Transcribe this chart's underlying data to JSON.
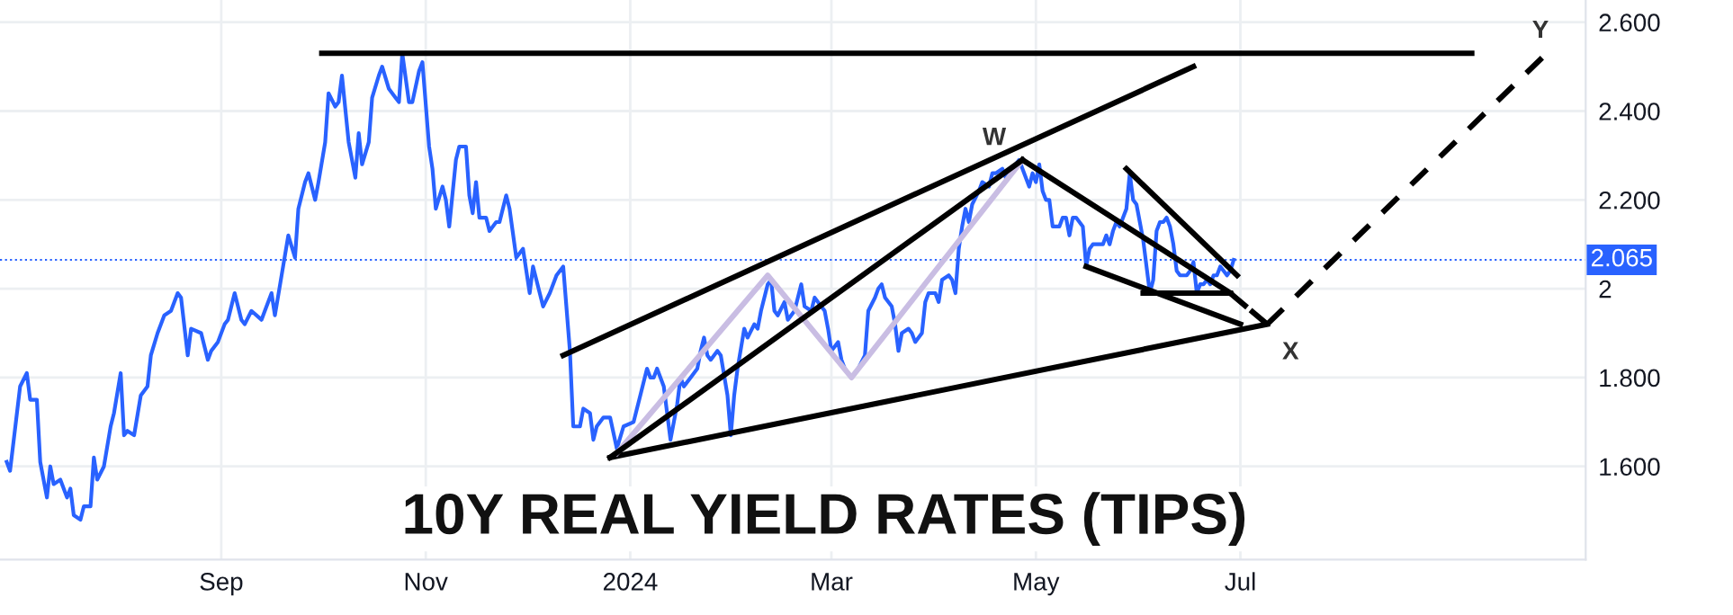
{
  "chart_data": {
    "type": "line",
    "title": "10Y REAL YIELD RATES (TIPS)",
    "xlim": [
      "2023-06-27",
      "2024-10-12"
    ],
    "ylim": [
      1.39,
      2.65
    ],
    "xticks": [
      {
        "value": "2023-09-01",
        "label": "Sep"
      },
      {
        "value": "2023-11-01",
        "label": "Nov"
      },
      {
        "value": "2024-01-01",
        "label": "2024"
      },
      {
        "value": "2024-03-01",
        "label": "Mar"
      },
      {
        "value": "2024-05-01",
        "label": "May"
      },
      {
        "value": "2024-07-01",
        "label": "Jul"
      }
    ],
    "yticks": [
      {
        "value": 1.6,
        "label": "1.600"
      },
      {
        "value": 1.8,
        "label": "1.800"
      },
      2,
      {
        "value": 2.2,
        "label": "2.200"
      },
      {
        "value": 2.4,
        "label": "2.400"
      },
      {
        "value": 2.6,
        "label": "2.600"
      }
    ],
    "grid": true,
    "series": [
      {
        "color": "#2962ff",
        "line_style": "solid",
        "x": [
          "2023-06-29",
          "2023-06-30",
          "2023-07-03",
          "2023-07-05",
          "2023-07-06",
          "2023-07-08",
          "2023-07-09",
          "2023-07-11",
          "2023-07-12",
          "2023-07-13",
          "2023-07-15",
          "2023-07-17",
          "2023-07-18",
          "2023-07-19",
          "2023-07-21",
          "2023-07-22",
          "2023-07-24",
          "2023-07-25",
          "2023-07-26",
          "2023-07-28",
          "2023-07-30",
          "2023-07-31",
          "2023-08-02",
          "2023-08-03",
          "2023-08-04",
          "2023-08-06",
          "2023-08-08",
          "2023-08-10",
          "2023-08-11",
          "2023-08-13",
          "2023-08-15",
          "2023-08-17",
          "2023-08-19",
          "2023-08-20",
          "2023-08-22",
          "2023-08-23",
          "2023-08-26",
          "2023-08-28",
          "2023-08-29",
          "2023-08-31",
          "2023-09-02",
          "2023-09-03",
          "2023-09-05",
          "2023-09-07",
          "2023-09-08",
          "2023-09-10",
          "2023-09-13",
          "2023-09-14",
          "2023-09-16",
          "2023-09-17",
          "2023-09-19",
          "2023-09-21",
          "2023-09-23",
          "2023-09-24",
          "2023-09-26",
          "2023-09-27",
          "2023-09-29",
          "2023-09-30",
          "2023-10-02",
          "2023-10-03",
          "2023-10-05",
          "2023-10-06",
          "2023-10-07",
          "2023-10-09",
          "2023-10-11",
          "2023-10-12",
          "2023-10-13",
          "2023-10-15",
          "2023-10-16",
          "2023-10-18",
          "2023-10-19",
          "2023-10-21",
          "2023-10-23",
          "2023-10-24",
          "2023-10-25",
          "2023-10-27",
          "2023-10-28",
          "2023-10-30",
          "2023-10-31",
          "2023-11-02",
          "2023-11-03",
          "2023-11-04",
          "2023-11-06",
          "2023-11-07",
          "2023-11-08",
          "2023-11-10",
          "2023-11-11",
          "2023-11-13",
          "2023-11-14",
          "2023-11-15",
          "2023-11-16",
          "2023-11-17",
          "2023-11-19",
          "2023-11-20",
          "2023-11-22",
          "2023-11-23",
          "2023-11-25",
          "2023-11-26",
          "2023-11-28",
          "2023-11-30",
          "2023-12-02",
          "2023-12-03",
          "2023-12-05",
          "2023-12-06",
          "2023-12-08",
          "2023-12-10",
          "2023-12-12",
          "2023-12-14",
          "2023-12-15",
          "2023-12-17",
          "2023-12-18",
          "2023-12-20",
          "2023-12-21",
          "2023-12-22",
          "2023-12-24",
          "2023-12-26",
          "2023-12-28",
          "2023-12-30",
          "2024-01-02",
          "2024-01-04",
          "2024-01-06",
          "2024-01-07",
          "2024-01-08",
          "2024-01-09",
          "2024-01-11",
          "2024-01-12",
          "2024-01-13",
          "2024-01-15",
          "2024-01-16",
          "2024-01-17",
          "2024-01-19",
          "2024-01-21",
          "2024-01-22",
          "2024-01-23",
          "2024-01-24",
          "2024-01-25",
          "2024-01-27",
          "2024-01-28",
          "2024-01-30",
          "2024-01-31",
          "2024-02-01",
          "2024-02-02",
          "2024-02-04",
          "2024-02-05",
          "2024-02-07",
          "2024-02-08",
          "2024-02-09",
          "2024-02-11",
          "2024-02-12",
          "2024-02-13",
          "2024-02-14",
          "2024-02-16",
          "2024-02-17",
          "2024-02-19",
          "2024-02-20",
          "2024-02-21",
          "2024-02-22",
          "2024-02-24",
          "2024-02-25",
          "2024-02-26",
          "2024-02-28",
          "2024-02-29",
          "2024-03-01",
          "2024-03-03",
          "2024-03-04",
          "2024-03-05",
          "2024-03-07",
          "2024-03-09",
          "2024-03-11",
          "2024-03-12",
          "2024-03-14",
          "2024-03-15",
          "2024-03-16",
          "2024-03-17",
          "2024-03-19",
          "2024-03-20",
          "2024-03-21",
          "2024-03-22",
          "2024-03-24",
          "2024-03-25",
          "2024-03-26",
          "2024-03-28",
          "2024-03-29",
          "2024-03-30",
          "2024-04-01",
          "2024-04-02",
          "2024-04-03",
          "2024-04-05",
          "2024-04-06",
          "2024-04-07",
          "2024-04-08",
          "2024-04-09",
          "2024-04-10",
          "2024-04-11",
          "2024-04-12",
          "2024-04-14",
          "2024-04-15",
          "2024-04-17",
          "2024-04-18",
          "2024-04-19",
          "2024-04-21",
          "2024-04-22",
          "2024-04-23",
          "2024-04-25",
          "2024-04-26",
          "2024-04-27",
          "2024-04-29",
          "2024-04-30",
          "2024-05-01",
          "2024-05-02",
          "2024-05-03",
          "2024-05-04",
          "2024-05-05",
          "2024-05-06",
          "2024-05-08",
          "2024-05-09",
          "2024-05-10",
          "2024-05-11",
          "2024-05-12",
          "2024-05-13",
          "2024-05-14",
          "2024-05-15",
          "2024-05-16",
          "2024-05-17",
          "2024-05-18",
          "2024-05-20",
          "2024-05-21",
          "2024-05-22",
          "2024-05-23",
          "2024-05-24",
          "2024-05-25",
          "2024-05-26",
          "2024-05-27",
          "2024-05-28",
          "2024-05-29",
          "2024-05-30",
          "2024-05-31",
          "2024-06-01",
          "2024-06-02",
          "2024-06-03",
          "2024-06-04",
          "2024-06-05",
          "2024-06-06",
          "2024-06-07",
          "2024-06-08",
          "2024-06-09",
          "2024-06-10",
          "2024-06-11",
          "2024-06-12",
          "2024-06-13",
          "2024-06-15",
          "2024-06-16",
          "2024-06-17",
          "2024-06-18",
          "2024-06-19",
          "2024-06-20",
          "2024-06-21",
          "2024-06-22",
          "2024-06-23",
          "2024-06-24",
          "2024-06-25",
          "2024-06-26",
          "2024-06-27",
          "2024-06-28",
          "2024-06-29"
        ],
        "values": [
          1.61,
          1.59,
          1.78,
          1.81,
          1.75,
          1.75,
          1.61,
          1.53,
          1.6,
          1.56,
          1.57,
          1.53,
          1.55,
          1.49,
          1.48,
          1.51,
          1.51,
          1.62,
          1.57,
          1.6,
          1.69,
          1.72,
          1.81,
          1.67,
          1.68,
          1.67,
          1.76,
          1.78,
          1.85,
          1.9,
          1.94,
          1.95,
          1.99,
          1.98,
          1.85,
          1.91,
          1.9,
          1.84,
          1.86,
          1.88,
          1.92,
          1.93,
          1.99,
          1.93,
          1.92,
          1.95,
          1.93,
          1.95,
          1.99,
          1.94,
          2.03,
          2.12,
          2.07,
          2.18,
          2.24,
          2.26,
          2.2,
          2.24,
          2.33,
          2.44,
          2.41,
          2.42,
          2.48,
          2.33,
          2.25,
          2.35,
          2.28,
          2.33,
          2.43,
          2.48,
          2.5,
          2.45,
          2.43,
          2.42,
          2.53,
          2.42,
          2.42,
          2.49,
          2.51,
          2.32,
          2.27,
          2.18,
          2.23,
          2.2,
          2.14,
          2.29,
          2.32,
          2.32,
          2.21,
          2.17,
          2.24,
          2.16,
          2.16,
          2.13,
          2.15,
          2.15,
          2.21,
          2.18,
          2.07,
          2.09,
          1.99,
          2.05,
          1.99,
          1.96,
          1.99,
          2.03,
          2.05,
          1.86,
          1.69,
          1.69,
          1.73,
          1.72,
          1.66,
          1.69,
          1.71,
          1.71,
          1.64,
          1.69,
          1.7,
          1.76,
          1.82,
          1.8,
          1.8,
          1.82,
          1.78,
          1.72,
          1.66,
          1.74,
          1.8,
          1.78,
          1.8,
          1.82,
          1.86,
          1.89,
          1.85,
          1.84,
          1.86,
          1.85,
          1.76,
          1.67,
          1.76,
          1.82,
          1.91,
          1.89,
          1.92,
          1.91,
          1.95,
          2.01,
          2.02,
          1.95,
          1.94,
          1.97,
          1.93,
          1.95,
          1.98,
          2.01,
          1.96,
          1.95,
          1.98,
          1.97,
          1.95,
          1.91,
          1.86,
          1.88,
          1.84,
          1.82,
          1.8,
          1.82,
          1.85,
          1.95,
          1.98,
          2.0,
          2.01,
          1.98,
          1.96,
          1.92,
          1.86,
          1.9,
          1.91,
          1.9,
          1.88,
          1.9,
          1.97,
          1.99,
          1.99,
          1.97,
          2.02,
          2.03,
          2.02,
          1.99,
          2.09,
          2.14,
          2.18,
          2.15,
          2.19,
          2.22,
          2.24,
          2.23,
          2.26,
          2.26,
          2.27,
          2.25,
          2.26,
          2.28,
          2.29,
          2.27,
          2.23,
          2.26,
          2.24,
          2.28,
          2.22,
          2.2,
          2.2,
          2.14,
          2.14,
          2.16,
          2.16,
          2.12,
          2.16,
          2.16,
          2.15,
          2.14,
          2.05,
          2.09,
          2.1,
          2.1,
          2.1,
          2.12,
          2.1,
          2.13,
          2.15,
          2.14,
          2.16,
          2.18,
          2.26,
          2.2,
          2.19,
          2.15,
          2.11,
          2.05,
          1.99,
          2.02,
          2.13,
          2.15,
          2.15,
          2.16,
          2.14,
          2.1,
          2.04,
          2.03,
          2.03,
          2.04,
          2.06,
          1.99,
          2.01,
          2.01,
          2.02,
          2.01,
          2.03,
          2.03,
          2.05,
          2.04,
          2.03,
          2.04,
          2.065
        ]
      },
      {
        "color": "#000000",
        "line_style": "solid",
        "x": [
          "2023-10-01",
          "2024-09-08"
        ],
        "values": [
          2.53,
          2.53
        ]
      },
      {
        "color": "#000000",
        "line_style": "solid",
        "x": [
          "2023-12-12",
          "2024-06-17"
        ],
        "values": [
          1.85,
          2.5
        ]
      },
      {
        "color": "#000000",
        "line_style": "solid",
        "x": [
          "2023-12-26",
          "2024-07-09"
        ],
        "values": [
          1.62,
          1.92
        ]
      },
      {
        "color": "#c9bde3",
        "line_style": "solid",
        "x": [
          "2023-12-28",
          "2024-02-11",
          "2024-03-07",
          "2024-04-27"
        ],
        "values": [
          1.63,
          2.03,
          1.8,
          2.29
        ]
      },
      {
        "color": "#000000",
        "line_style": "solid",
        "x": [
          "2023-12-26",
          "2024-04-27"
        ],
        "values": [
          1.62,
          2.29
        ]
      },
      {
        "color": "#000000",
        "line_style": "solid",
        "x": [
          "2024-04-27",
          "2024-06-28"
        ],
        "values": [
          2.29,
          1.99
        ]
      },
      {
        "color": "#000000",
        "line_style": "solid",
        "x": [
          "2024-05-28",
          "2024-06-30"
        ],
        "values": [
          2.27,
          2.03
        ]
      },
      {
        "color": "#000000",
        "line_style": "solid",
        "x": [
          "2024-05-16",
          "2024-07-01"
        ],
        "values": [
          2.05,
          1.92
        ]
      },
      {
        "color": "#000000",
        "line_style": "solid",
        "x": [
          "2024-06-02",
          "2024-06-28"
        ],
        "values": [
          1.99,
          1.99
        ]
      },
      {
        "color": "#000000",
        "line_style": "dashed",
        "x": [
          "2024-06-28",
          "2024-07-09"
        ],
        "values": [
          1.99,
          1.92
        ]
      },
      {
        "color": "#000000",
        "line_style": "dashed",
        "x": [
          "2024-07-09",
          "2024-09-29"
        ],
        "values": [
          1.92,
          2.52
        ]
      }
    ],
    "ref_lines": [
      {
        "axis": "y",
        "value": 2.065,
        "label": "2.065",
        "color": "#2962ff",
        "line_style": "dotted"
      }
    ],
    "annotations": [
      {
        "text": "W",
        "x": "2024-04-27",
        "y": 2.29
      },
      {
        "text": "X",
        "x": "2024-07-09",
        "y": 1.92
      },
      {
        "text": "Y",
        "x": "2024-09-29",
        "y": 2.52
      }
    ]
  }
}
